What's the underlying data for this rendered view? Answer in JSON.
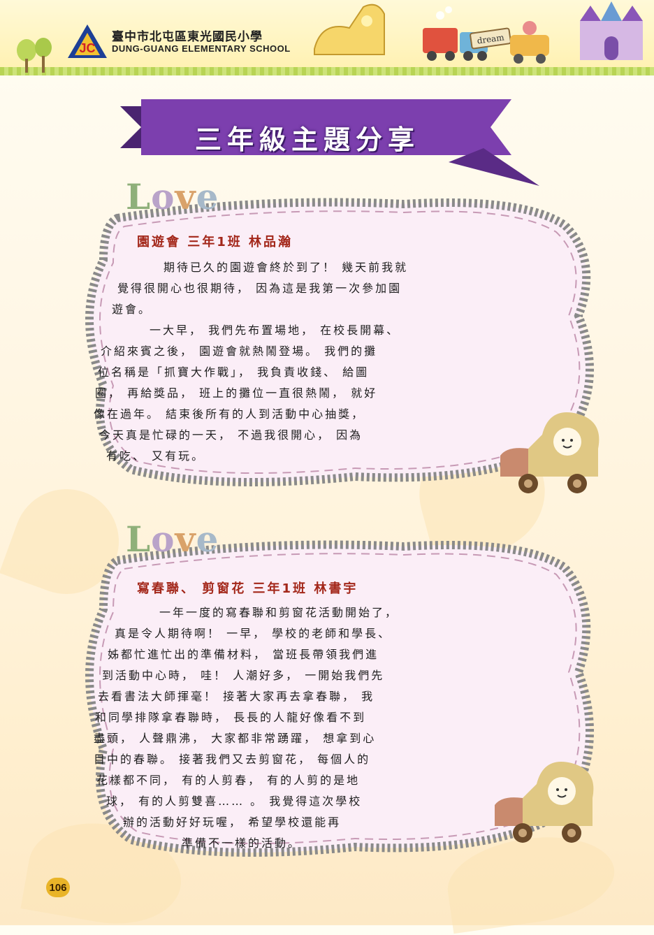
{
  "header": {
    "school_name": "臺中市北屯區東光國民小學",
    "school_name_en": "DUNG-GUANG ELEMENTARY SCHOOL",
    "logo_text": "JC",
    "sign_text": "dream"
  },
  "section_title": "三年級主題分享",
  "articles": [
    {
      "love_label": "Love",
      "title": "園遊會 三年1班 林品瀚",
      "lines": [
        "期待已久的園遊會終於到了！ 幾天前我就",
        "覺得很開心也很期待， 因為這是我第一次參加園",
        "遊會。",
        "一大早， 我們先布置場地， 在校長開幕、",
        "介紹來賓之後， 園遊會就熱鬧登場。 我們的攤",
        "位名稱是「抓寶大作戰」， 我負責收錢、 給圖",
        "圈， 再給獎品， 班上的攤位一直很熱鬧， 就好",
        "像在過年。 結束後所有的人到活動中心抽獎，",
        "今天真是忙碌的一天， 不過我很開心， 因為",
        "有吃、 又有玩。"
      ]
    },
    {
      "love_label": "Love",
      "title": "寫春聯、 剪窗花 三年1班 林書宇",
      "lines": [
        "一年一度的寫春聯和剪窗花活動開始了，",
        "真是令人期待啊！ 一早， 學校的老師和學長、",
        "姊都忙進忙出的準備材料， 當班長帶領我們進",
        "到活動中心時， 哇！ 人潮好多， 一開始我們先",
        "去看書法大師揮毫！ 接著大家再去拿春聯， 我",
        "和同學排隊拿春聯時， 長長的人龍好像看不到",
        "盡頭， 人聲鼎沸， 大家都非常踴躍， 想拿到心",
        "目中的春聯。 接著我們又去剪窗花， 每個人的",
        "花樣都不同， 有的人剪春， 有的人剪的是地",
        "球， 有的人剪雙喜…… 。 我覺得這次學校",
        "辦的活動好好玩喔， 希望學校還能再",
        "準備不一樣的活動。"
      ]
    }
  ],
  "page_number": "106",
  "colors": {
    "ribbon": "#7c3fae",
    "title_red": "#a3271a",
    "card_fill": "#fbeef7",
    "frame_stripe": "#8a8a8a",
    "dash": "#c79ab5",
    "accent_gold": "#e9b428"
  }
}
